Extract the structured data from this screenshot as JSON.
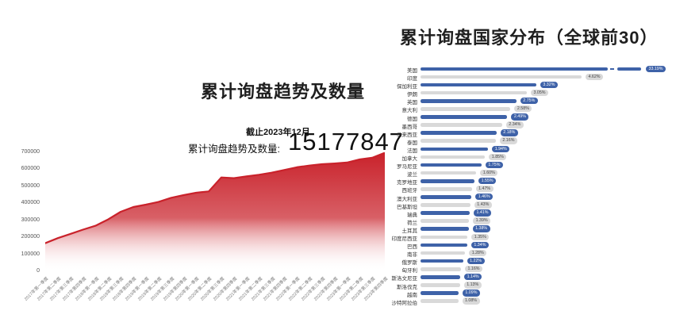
{
  "colors": {
    "area_fill_top": "#c9222b",
    "area_line": "#c9222b",
    "bar_blue": "#3e62a8",
    "bar_gray": "#d9d9d9",
    "badge_gray_text": "#444444",
    "title_text": "#1f1f1f"
  },
  "left_panel": {
    "title": "累计询盘趋势及数量",
    "asof": "截止2023年12月",
    "total_label": "累计询盘趋势及数量:",
    "total_value": "15177847"
  },
  "right_panel": {
    "title": "累计询盘国家分布（全球前30）"
  },
  "chart_data": [
    {
      "type": "area",
      "title": "累计询盘趋势及数量",
      "ylabel": "",
      "xlabel": "",
      "ylim": [
        0,
        700000
      ],
      "yticks": [
        0,
        100000,
        200000,
        300000,
        400000,
        500000,
        600000,
        700000
      ],
      "grid": false,
      "x": [
        "2017年第一季度",
        "2017年第二季度",
        "2017年第三季度",
        "2017年第四季度",
        "2018年第一季度",
        "2018年第二季度",
        "2018年第三季度",
        "2018年第四季度",
        "2019年第一季度",
        "2019年第二季度",
        "2019年第三季度",
        "2019年第四季度",
        "2020年第一季度",
        "2020年第二季度",
        "2020年第三季度",
        "2020年第四季度",
        "2021年第一季度",
        "2021年第二季度",
        "2021年第三季度",
        "2021年第四季度",
        "2022年第一季度",
        "2022年第二季度",
        "2022年第三季度",
        "2022年第四季度",
        "2023年第一季度",
        "2023年第二季度",
        "2023年第三季度",
        "2023年第四季度"
      ],
      "values": [
        165000,
        195000,
        220000,
        245000,
        268000,
        305000,
        350000,
        378000,
        392000,
        408000,
        432000,
        448000,
        462000,
        470000,
        552000,
        548000,
        558000,
        568000,
        580000,
        596000,
        612000,
        622000,
        630000,
        634000,
        640000,
        658000,
        668000,
        697000
      ]
    },
    {
      "type": "bar",
      "orientation": "horizontal",
      "title": "累计询盘国家分布（全球前30）",
      "value_unit": "%",
      "axis_scale_max_percent": 4.62,
      "legend": "none",
      "categories": [
        "美国",
        "印度",
        "保加利亚",
        "伊朗",
        "英国",
        "意大利",
        "德国",
        "墨西哥",
        "马来西亚",
        "泰国",
        "法国",
        "加拿大",
        "罗马尼亚",
        "波兰",
        "克罗地亚",
        "西班牙",
        "澳大利亚",
        "巴基斯坦",
        "瑞典",
        "荷兰",
        "土耳其",
        "印度尼西亚",
        "巴西",
        "南非",
        "俄罗斯",
        "匈牙利",
        "斯洛文尼亚",
        "斯洛伐克",
        "越南",
        "沙特阿拉伯"
      ],
      "values": [
        33.19,
        4.62,
        3.32,
        3.05,
        2.75,
        2.58,
        2.49,
        2.34,
        2.18,
        2.16,
        1.94,
        1.85,
        1.75,
        1.6,
        1.55,
        1.47,
        1.46,
        1.43,
        1.41,
        1.39,
        1.38,
        1.35,
        1.34,
        1.28,
        1.22,
        1.16,
        1.14,
        1.13,
        1.09,
        1.08
      ],
      "broken_bar_category": "美国",
      "bar_color_pattern": "alternating blue/gray starting with blue"
    }
  ]
}
